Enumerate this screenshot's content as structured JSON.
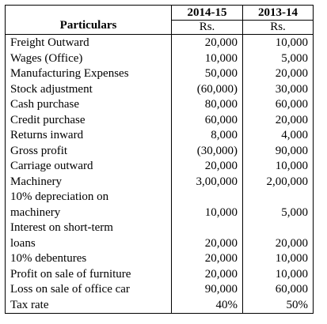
{
  "header": {
    "particulars": "Particulars",
    "col1": {
      "year": "2014-15",
      "unit": "Rs."
    },
    "col2": {
      "year": "2013-14",
      "unit": "Rs."
    }
  },
  "rows": [
    {
      "label": "Freight Outward",
      "v1": "20,000",
      "v2": "10,000"
    },
    {
      "label": "Wages (Office)",
      "v1": "10,000",
      "v2": "5,000"
    },
    {
      "label": "Manufacturing Expenses",
      "v1": "50,000",
      "v2": "20,000"
    },
    {
      "label": "Stock adjustment",
      "v1": "(60,000)",
      "v2": "30,000"
    },
    {
      "label": "Cash purchase",
      "v1": "80,000",
      "v2": "60,000"
    },
    {
      "label": "Credit purchase",
      "v1": "60,000",
      "v2": "20,000"
    },
    {
      "label": "Returns inward",
      "v1": "8,000",
      "v2": "4,000"
    },
    {
      "label": "Gross profit",
      "v1": "(30,000)",
      "v2": "90,000"
    },
    {
      "label": "Carriage outward",
      "v1": "20,000",
      "v2": "10,000"
    },
    {
      "label": "Machinery",
      "v1": "3,00,000",
      "v2": "2,00,000"
    },
    {
      "label": "10% depreciation on",
      "v1": "",
      "v2": ""
    },
    {
      "label": "machinery",
      "v1": "10,000",
      "v2": "5,000"
    },
    {
      "label": "Interest on short-term",
      "v1": "",
      "v2": ""
    },
    {
      "label": "loans",
      "v1": "20,000",
      "v2": "20,000"
    },
    {
      "label": "10% debentures",
      "v1": "20,000",
      "v2": "10,000"
    },
    {
      "label": "Profit on sale of furniture",
      "v1": "20,000",
      "v2": "10,000"
    },
    {
      "label": "Loss on sale of office car",
      "v1": "90,000",
      "v2": "60,000"
    },
    {
      "label": "Tax rate",
      "v1": "40%",
      "v2": "50%"
    }
  ]
}
